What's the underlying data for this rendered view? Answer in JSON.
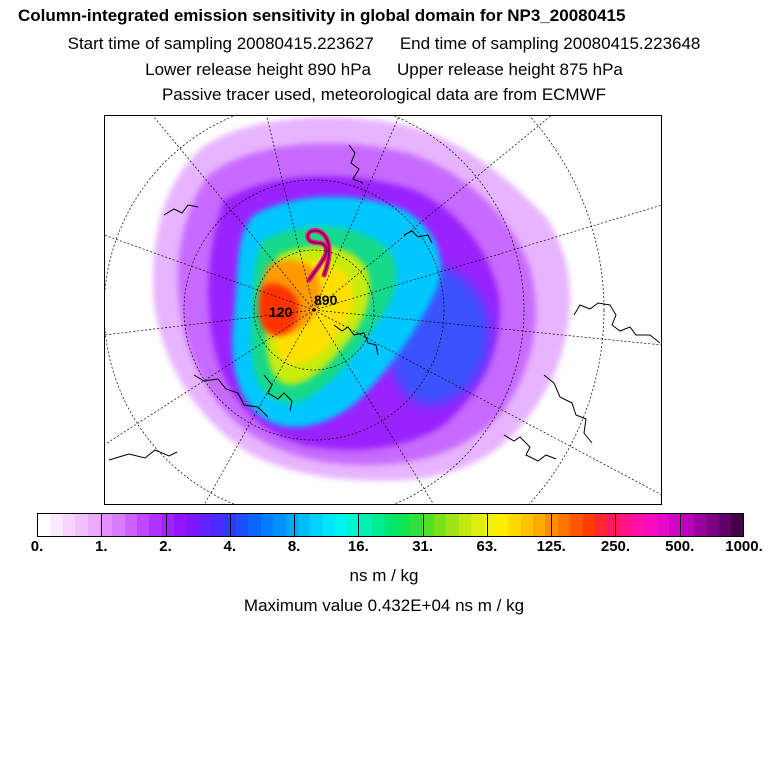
{
  "header": {
    "title": "Column-integrated emission sensitivity in global domain for NP3_20080415",
    "start_time": "Start time of sampling 20080415.223627",
    "end_time": "End time of sampling 20080415.223648",
    "lower_height": "Lower release height  890 hPa",
    "upper_height": "Upper release height  875 hPa",
    "tracer_note": "Passive tracer used, meteorological data are from ECMWF"
  },
  "map": {
    "trajectory_labels": [
      "120",
      "890"
    ],
    "colors": {
      "background": "#ffffff",
      "coast": "#000000"
    }
  },
  "colorbar": {
    "colors": [
      "#ffffff",
      "#fbe9ff",
      "#f7d4ff",
      "#f2bfff",
      "#eda8ff",
      "#e491ff",
      "#d97bff",
      "#cc62ff",
      "#c049ff",
      "#b232ff",
      "#a420ff",
      "#9414ff",
      "#7d17ff",
      "#6322ff",
      "#4a2bff",
      "#303aff",
      "#1b4fff",
      "#0b66ff",
      "#007dff",
      "#0092ff",
      "#00a7ff",
      "#00bdff",
      "#00d3ff",
      "#00e6ff",
      "#00f5ef",
      "#00f5d0",
      "#00f0b0",
      "#00ec90",
      "#00e870",
      "#12e552",
      "#30e13a",
      "#52e025",
      "#7ae11a",
      "#a0e515",
      "#c2ea12",
      "#dcef10",
      "#f0f20e",
      "#ffee00",
      "#ffd900",
      "#ffc200",
      "#ffaa00",
      "#ff8f00",
      "#ff7300",
      "#ff5700",
      "#ff3d00",
      "#ff2730",
      "#ff1860",
      "#ff1488",
      "#ff10a8",
      "#f80cc0",
      "#e808c8",
      "#d204c8",
      "#b802b8",
      "#9c01a0",
      "#7e0185",
      "#600068",
      "#45004c"
    ],
    "tick_labels": [
      "0.",
      "1.",
      "2.",
      "4.",
      "8.",
      "16.",
      "31.",
      "63.",
      "125.",
      "250.",
      "500.",
      "1000."
    ],
    "units": "ns m / kg",
    "max_value": "Maximum value  0.432E+04 ns m / kg"
  }
}
